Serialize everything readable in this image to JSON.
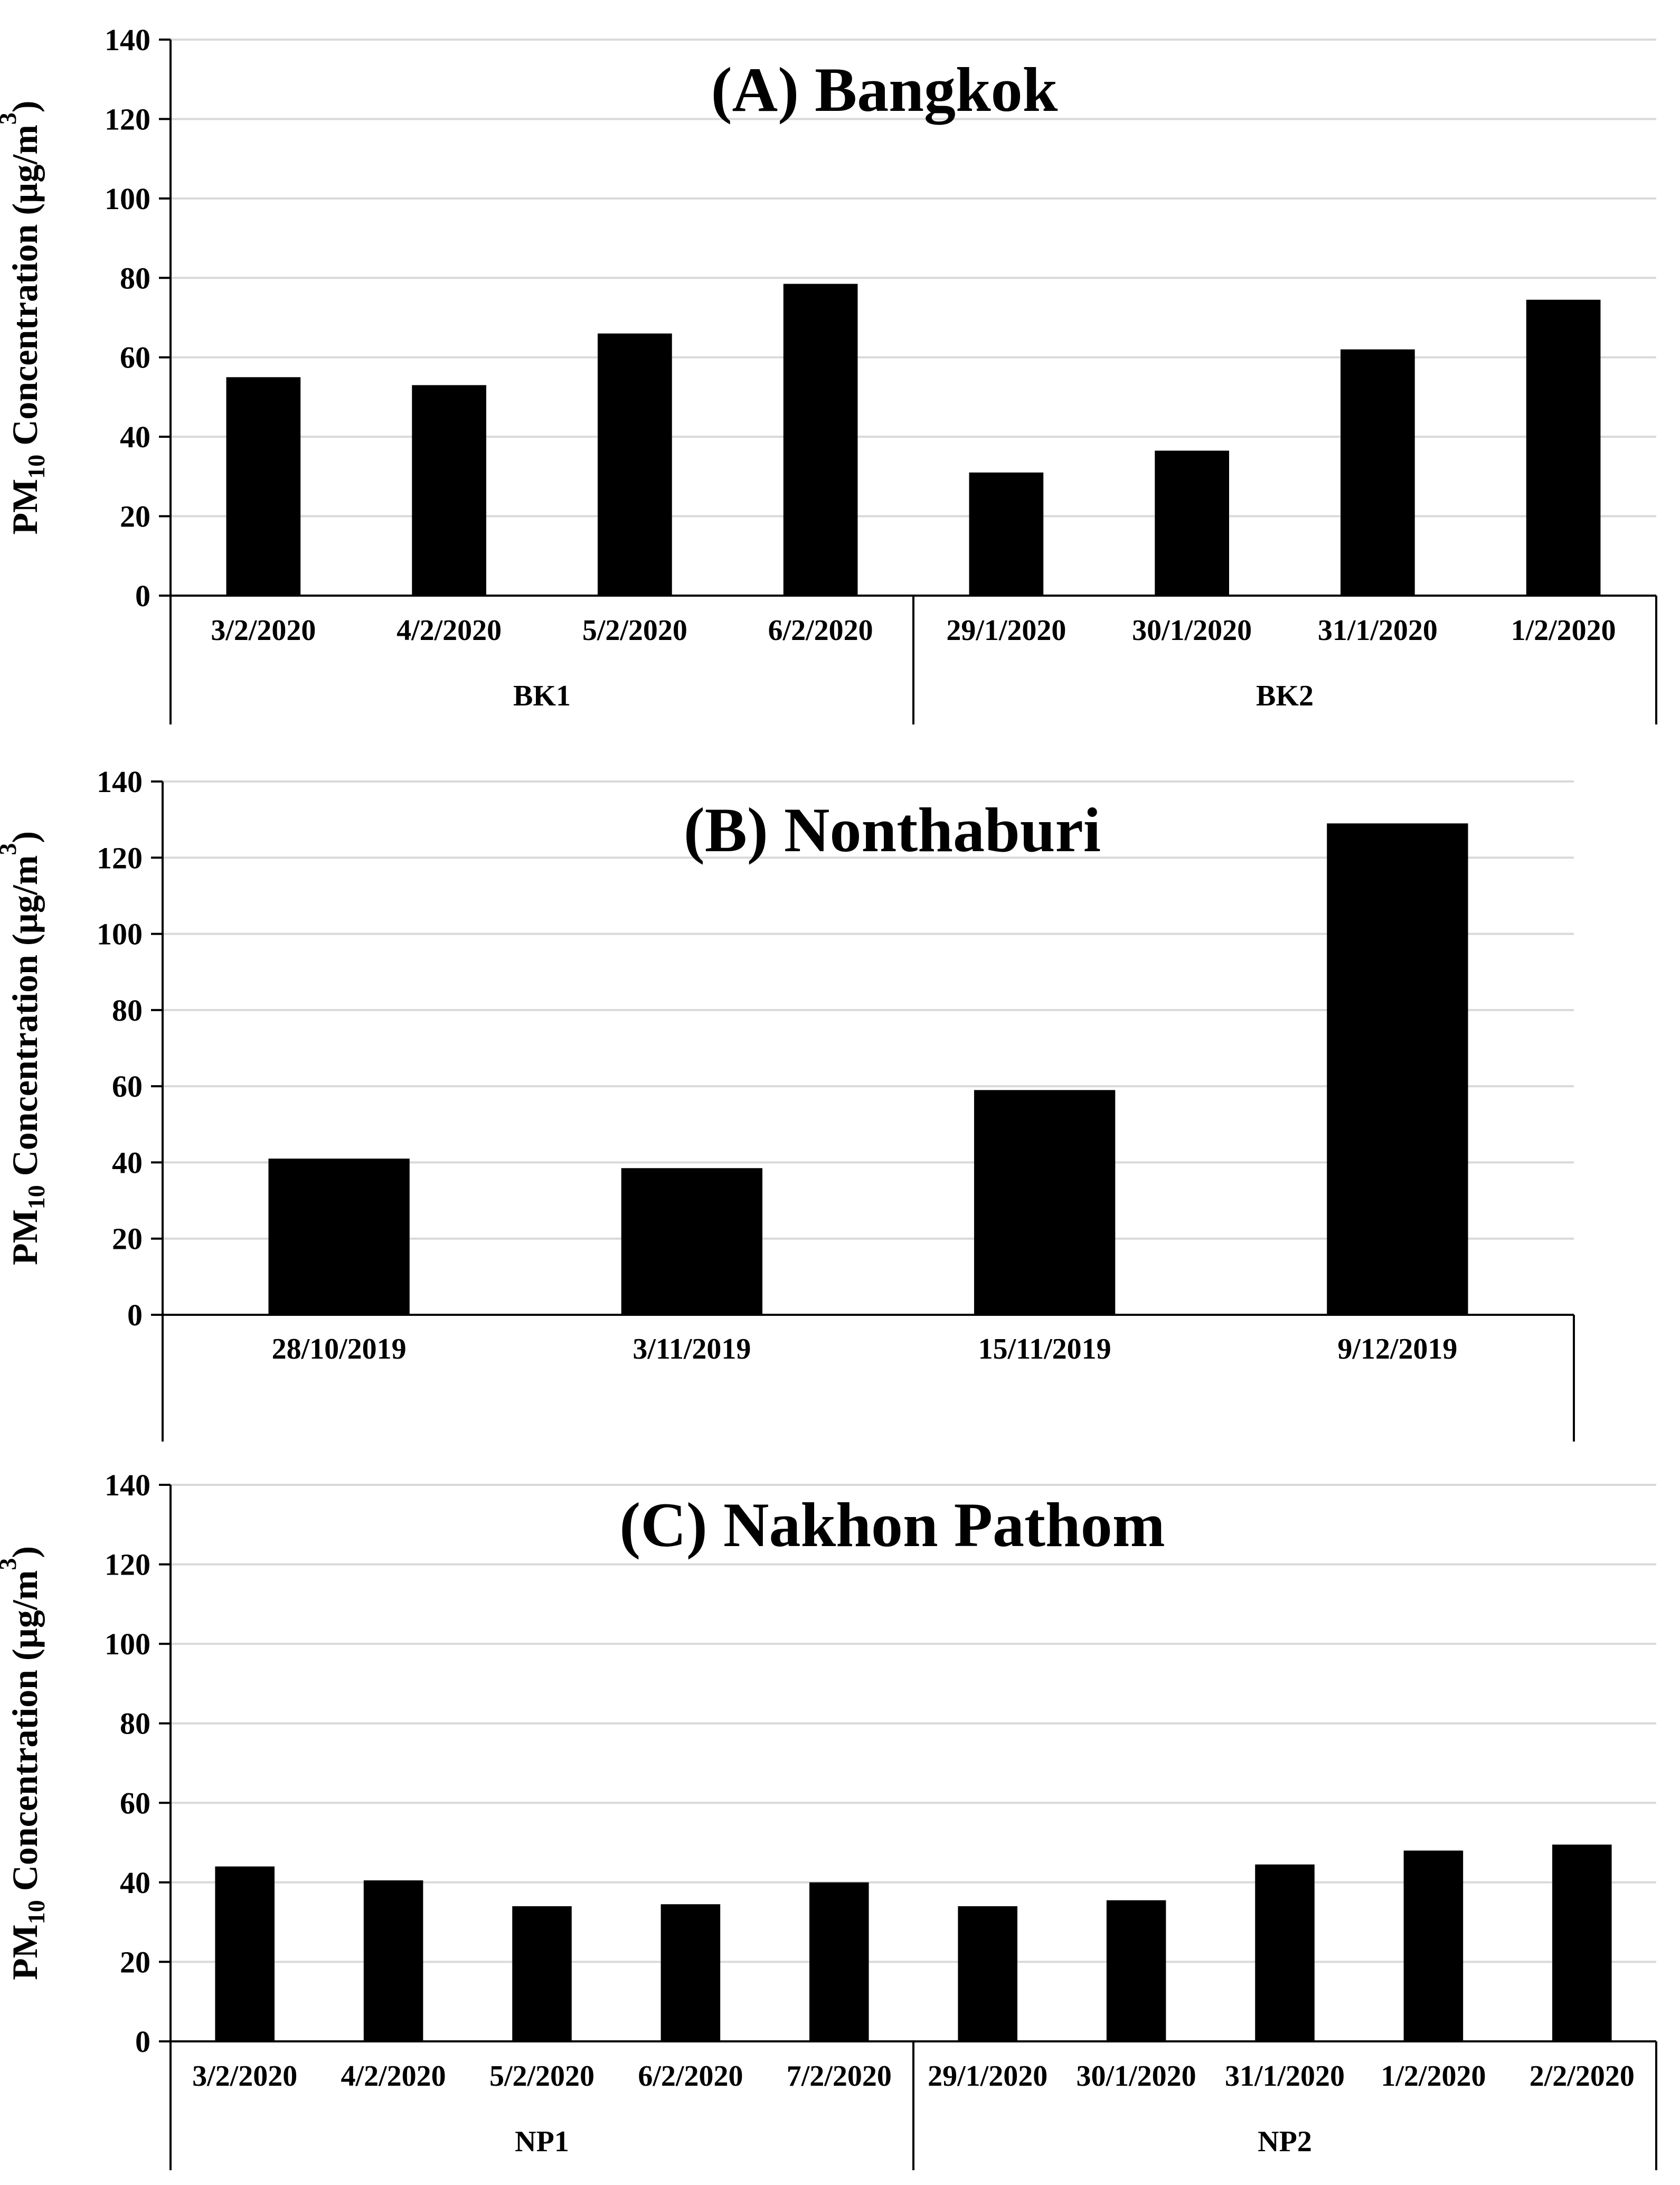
{
  "figure": {
    "bar_color": "#000000",
    "grid_color": "#d9d9d9",
    "axis_color": "#000000"
  },
  "chart_data": [
    {
      "type": "bar",
      "title": "(A) Bangkok",
      "ylabel": {
        "pre": "PM",
        "sub": "10",
        "mid": " Concentration (µg/m",
        "sup": "3",
        "post": ")"
      },
      "ylim": [
        0,
        140
      ],
      "yticks": [
        0,
        20,
        40,
        60,
        80,
        100,
        120,
        140
      ],
      "grid": true,
      "groups": [
        {
          "name": "BK1",
          "categories": [
            "3/2/2020",
            "4/2/2020",
            "5/2/2020",
            "6/2/2020"
          ],
          "values": [
            55,
            53,
            66,
            78.5
          ]
        },
        {
          "name": "BK2",
          "categories": [
            "29/1/2020",
            "30/1/2020",
            "31/1/2020",
            "1/2/2020"
          ],
          "values": [
            31,
            36.5,
            62,
            74.5
          ]
        }
      ]
    },
    {
      "type": "bar",
      "title": "(B) Nonthaburi",
      "ylabel": {
        "pre": "PM",
        "sub": "10",
        "mid": " Concentration (µg/m",
        "sup": "3",
        "post": ")"
      },
      "ylim": [
        0,
        140
      ],
      "yticks": [
        0,
        20,
        40,
        60,
        80,
        100,
        120,
        140
      ],
      "grid": true,
      "groups": [
        {
          "name": "",
          "categories": [
            "28/10/2019",
            "3/11/2019",
            "15/11/2019",
            "9/12/2019"
          ],
          "values": [
            41,
            38.5,
            59,
            129
          ]
        }
      ]
    },
    {
      "type": "bar",
      "title": "(C) Nakhon Pathom",
      "ylabel": {
        "pre": "PM",
        "sub": "10",
        "mid": " Concentration (µg/m",
        "sup": "3",
        "post": ")"
      },
      "ylim": [
        0,
        140
      ],
      "yticks": [
        0,
        20,
        40,
        60,
        80,
        100,
        120,
        140
      ],
      "grid": true,
      "groups": [
        {
          "name": "NP1",
          "categories": [
            "3/2/2020",
            "4/2/2020",
            "5/2/2020",
            "6/2/2020",
            "7/2/2020"
          ],
          "values": [
            44,
            40.5,
            34,
            34.5,
            40
          ]
        },
        {
          "name": "NP2",
          "categories": [
            "29/1/2020",
            "30/1/2020",
            "31/1/2020",
            "1/2/2020",
            "2/2/2020"
          ],
          "values": [
            34,
            35.5,
            44.5,
            48,
            49.5
          ]
        }
      ]
    }
  ]
}
